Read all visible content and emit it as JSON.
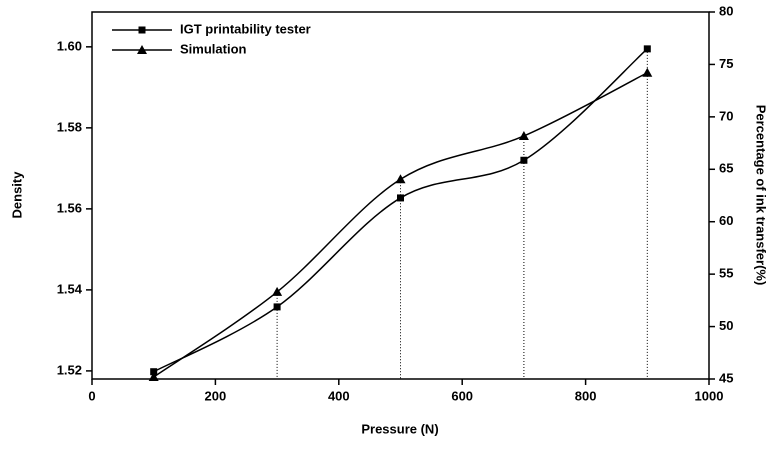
{
  "chart_data": {
    "type": "line",
    "x_label": "Pressure (N)",
    "y_label": "Density",
    "y2_label": "Percentage of ink transfer(%)",
    "x": [
      100,
      300,
      500,
      700,
      900
    ],
    "series": [
      {
        "name": "IGT printability tester",
        "color": "#000000",
        "marker": "square",
        "values": [
          1.5198,
          1.5358,
          1.5627,
          1.572,
          1.5995
        ]
      },
      {
        "name": "Simulation",
        "color": "#000000",
        "marker": "triangle",
        "values": [
          1.5185,
          1.5395,
          1.5673,
          1.578,
          1.5936
        ]
      }
    ],
    "xlim": [
      0,
      1000
    ],
    "xticks": [
      0,
      200,
      400,
      600,
      800,
      1000
    ],
    "ylim": [
      1.518,
      1.6086
    ],
    "yticks": [
      {
        "value": 1.52,
        "label": "1.52"
      },
      {
        "value": 1.54,
        "label": "1.54"
      },
      {
        "value": 1.56,
        "label": "1.56"
      },
      {
        "value": 1.58,
        "label": "1.58"
      },
      {
        "value": 1.6,
        "label": "1.60"
      }
    ],
    "y2lim": [
      45,
      80
    ],
    "y2ticks": [
      45,
      50,
      55,
      60,
      65,
      70,
      75,
      80
    ],
    "legend": "upper left",
    "grid": false
  }
}
